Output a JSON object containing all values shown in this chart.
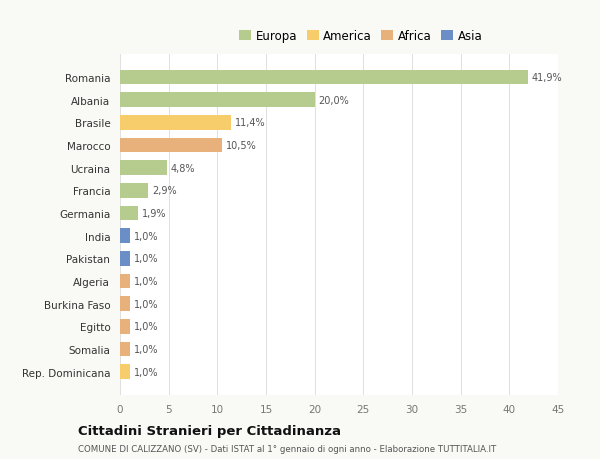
{
  "countries": [
    "Romania",
    "Albania",
    "Brasile",
    "Marocco",
    "Ucraina",
    "Francia",
    "Germania",
    "India",
    "Pakistan",
    "Algeria",
    "Burkina Faso",
    "Egitto",
    "Somalia",
    "Rep. Dominicana"
  ],
  "values": [
    41.9,
    20.0,
    11.4,
    10.5,
    4.8,
    2.9,
    1.9,
    1.0,
    1.0,
    1.0,
    1.0,
    1.0,
    1.0,
    1.0
  ],
  "labels": [
    "41,9%",
    "20,0%",
    "11,4%",
    "10,5%",
    "4,8%",
    "2,9%",
    "1,9%",
    "1,0%",
    "1,0%",
    "1,0%",
    "1,0%",
    "1,0%",
    "1,0%",
    "1,0%"
  ],
  "colors": [
    "#b5cc8e",
    "#b5cc8e",
    "#f7cc6a",
    "#e8b07a",
    "#b5cc8e",
    "#b5cc8e",
    "#b5cc8e",
    "#6b8ec7",
    "#6b8ec7",
    "#e8b07a",
    "#e8b07a",
    "#e8b07a",
    "#e8b07a",
    "#f7cc6a"
  ],
  "legend_labels": [
    "Europa",
    "America",
    "Africa",
    "Asia"
  ],
  "legend_colors": [
    "#b5cc8e",
    "#f7cc6a",
    "#e8b07a",
    "#6b8ec7"
  ],
  "title": "Cittadini Stranieri per Cittadinanza",
  "subtitle": "COMUNE DI CALIZZANO (SV) - Dati ISTAT al 1° gennaio di ogni anno - Elaborazione TUTTITALIA.IT",
  "xlim": [
    0,
    45
  ],
  "xticks": [
    0,
    5,
    10,
    15,
    20,
    25,
    30,
    35,
    40,
    45
  ],
  "background_color": "#f9f9f6",
  "bar_background": "#ffffff",
  "grid_color": "#e0e0e0"
}
